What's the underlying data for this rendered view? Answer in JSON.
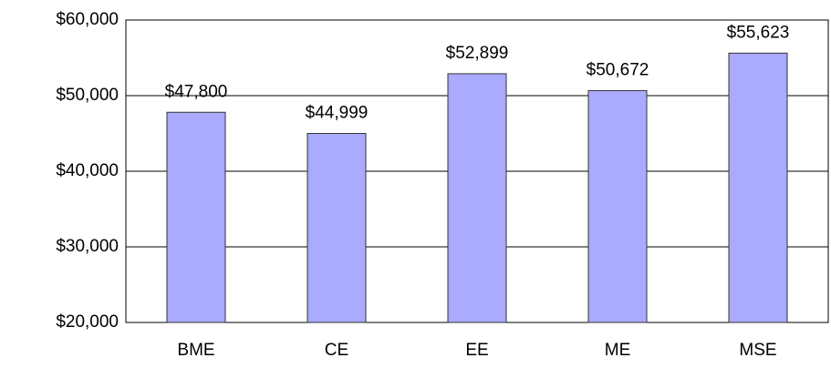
{
  "chart_data": {
    "type": "bar",
    "categories": [
      "BME",
      "CE",
      "EE",
      "ME",
      "MSE"
    ],
    "values": [
      47800,
      44999,
      52899,
      50672,
      55623
    ],
    "value_labels": [
      "$47,800",
      "$44,999",
      "$52,899",
      "$50,672",
      "$55,623"
    ],
    "color": "#aaaaff",
    "ylim": [
      20000,
      60000
    ],
    "yticks": [
      {
        "value": 20000,
        "label": "$20,000"
      },
      {
        "value": 30000,
        "label": "$30,000"
      },
      {
        "value": 40000,
        "label": "$40,000"
      },
      {
        "value": 50000,
        "label": "$50,000"
      },
      {
        "value": 60000,
        "label": "$60,000"
      }
    ],
    "grid": true
  }
}
